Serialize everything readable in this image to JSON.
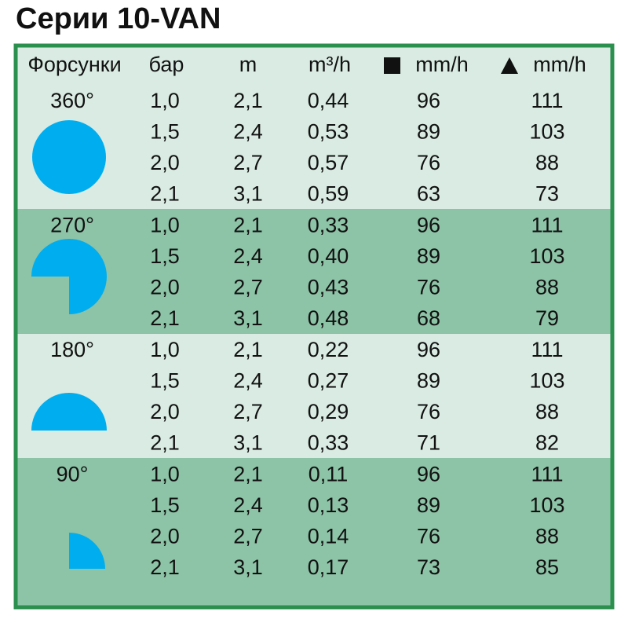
{
  "header": {
    "title": "Серии 10-VAN"
  },
  "table": {
    "columns": [
      "Форсунки",
      "бар",
      "m",
      "m³/h",
      "mm/h",
      "mm/h"
    ],
    "groups": [
      {
        "angle": "360°",
        "rows": [
          [
            "1,0",
            "2,1",
            "0,44",
            "96",
            "111"
          ],
          [
            "1,5",
            "2,4",
            "0,53",
            "89",
            "103"
          ],
          [
            "2,0",
            "2,7",
            "0,57",
            "76",
            "88"
          ],
          [
            "2,1",
            "3,1",
            "0,59",
            "63",
            "73"
          ]
        ]
      },
      {
        "angle": "270°",
        "rows": [
          [
            "1,0",
            "2,1",
            "0,33",
            "96",
            "111"
          ],
          [
            "1,5",
            "2,4",
            "0,40",
            "89",
            "103"
          ],
          [
            "2,0",
            "2,7",
            "0,43",
            "76",
            "88"
          ],
          [
            "2,1",
            "3,1",
            "0,48",
            "68",
            "79"
          ]
        ]
      },
      {
        "angle": "180°",
        "rows": [
          [
            "1,0",
            "2,1",
            "0,22",
            "96",
            "111"
          ],
          [
            "1,5",
            "2,4",
            "0,27",
            "89",
            "103"
          ],
          [
            "2,0",
            "2,7",
            "0,29",
            "76",
            "88"
          ],
          [
            "2,1",
            "3,1",
            "0,33",
            "71",
            "82"
          ]
        ]
      },
      {
        "angle": "90°",
        "rows": [
          [
            "1,0",
            "2,1",
            "0,11",
            "96",
            "111"
          ],
          [
            "1,5",
            "2,4",
            "0,13",
            "89",
            "103"
          ],
          [
            "2,0",
            "2,7",
            "0,14",
            "76",
            "88"
          ],
          [
            "2,1",
            "3,1",
            "0,17",
            "73",
            "85"
          ]
        ]
      }
    ]
  }
}
